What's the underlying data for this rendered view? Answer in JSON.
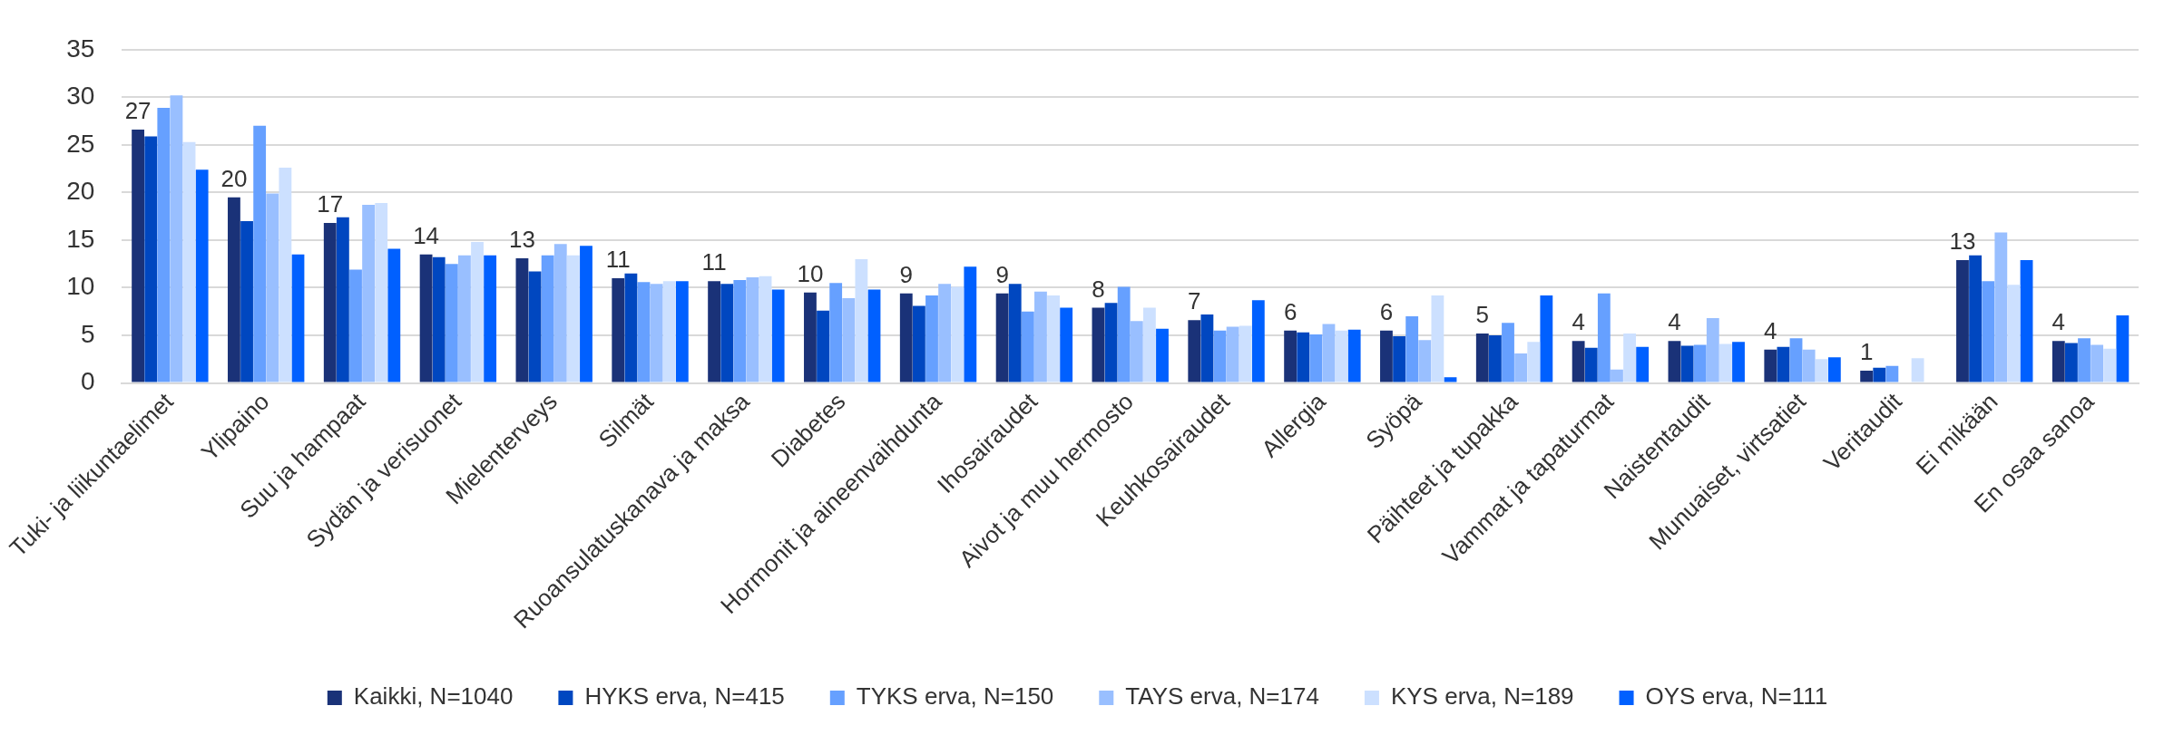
{
  "chart_data": {
    "type": "bar",
    "categories": [
      "Tuki- ja liikuntaelimet",
      "Ylipaino",
      "Suu ja hampaat",
      "Sydän ja verisuonet",
      "Mielenterveys",
      "Silmät",
      "Ruoansulatuskanava ja maksa",
      "Diabetes",
      "Hormonit ja aineenvaihdunta",
      "Ihosairaudet",
      "Aivot ja muu hermosto",
      "Keuhkosairaudet",
      "Allergia",
      "Syöpä",
      "Päihteet ja tupakka",
      "Vammat ja tapaturmat",
      "Naistentaudit",
      "Munuaiset, virtsatiet",
      "Veritaudit",
      "Ei mikään",
      "En osaa sanoa"
    ],
    "series": [
      {
        "name": "Kaikki, N=1040",
        "color": "#1a3278",
        "values": [
          26.6,
          19.5,
          16.8,
          13.5,
          13.1,
          11.0,
          10.7,
          9.5,
          9.4,
          9.4,
          7.9,
          6.6,
          5.5,
          5.5,
          5.2,
          4.4,
          4.4,
          3.5,
          1.3,
          12.9,
          4.4
        ],
        "value_labels": [
          "27",
          "20",
          "17",
          "14",
          "13",
          "11",
          "11",
          "10",
          "9",
          "9",
          "8",
          "7",
          "6",
          "6",
          "5",
          "4",
          "4",
          "4",
          "1",
          "13",
          "4"
        ]
      },
      {
        "name": "HYKS erva, N=415",
        "color": "#0047c0",
        "values": [
          25.9,
          17.0,
          17.4,
          13.2,
          11.7,
          11.5,
          10.4,
          7.6,
          8.1,
          10.4,
          8.4,
          7.2,
          5.3,
          4.9,
          5.0,
          3.7,
          3.9,
          3.8,
          1.6,
          13.4,
          4.2
        ]
      },
      {
        "name": "TYKS erva, N=150",
        "color": "#66a0ff",
        "values": [
          28.9,
          27.0,
          11.9,
          12.5,
          13.4,
          10.6,
          10.8,
          10.5,
          9.2,
          7.5,
          10.1,
          5.5,
          5.1,
          7.0,
          6.3,
          9.4,
          4.0,
          4.7,
          1.8,
          10.7,
          4.7
        ]
      },
      {
        "name": "TAYS erva, N=174",
        "color": "#99bfff",
        "values": [
          30.2,
          19.9,
          18.7,
          13.4,
          14.6,
          10.4,
          11.1,
          8.9,
          10.4,
          9.6,
          6.5,
          5.9,
          6.2,
          4.5,
          3.1,
          1.4,
          6.8,
          3.5,
          0,
          15.8,
          4.0
        ]
      },
      {
        "name": "KYS erva, N=189",
        "color": "#cce0ff",
        "values": [
          25.3,
          22.6,
          18.9,
          14.8,
          13.4,
          10.7,
          11.2,
          13.0,
          10.1,
          9.2,
          7.9,
          6.0,
          5.5,
          9.2,
          4.3,
          5.2,
          4.1,
          2.5,
          2.6,
          10.3,
          3.6
        ]
      },
      {
        "name": "OYS erva, N=111",
        "color": "#0060ff",
        "values": [
          22.4,
          13.5,
          14.1,
          13.4,
          14.4,
          10.7,
          9.8,
          9.8,
          12.2,
          7.9,
          5.7,
          8.7,
          5.6,
          0.6,
          9.2,
          3.8,
          4.3,
          2.7,
          0,
          12.9,
          7.1
        ]
      }
    ],
    "ylim": [
      0,
      35
    ],
    "yticks": [
      0,
      5,
      10,
      15,
      20,
      25,
      30,
      35
    ],
    "grid": "y",
    "legend": "bottom"
  }
}
